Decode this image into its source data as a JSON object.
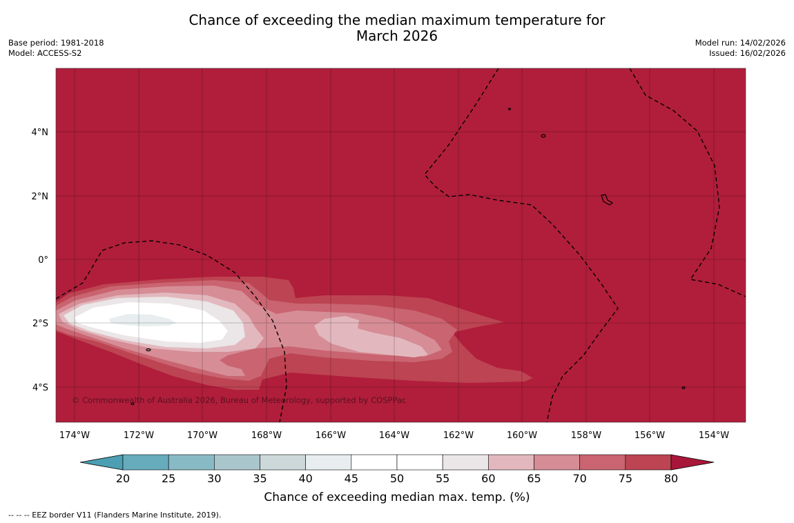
{
  "title": {
    "line1": "Chance of exceeding the median maximum temperature for",
    "line2": "March 2026"
  },
  "meta_left": {
    "base_period": "Base period: 1981-2018",
    "model": "Model: ACCESS-S2"
  },
  "meta_right": {
    "model_run": "Model run: 14/02/2026",
    "issued": "Issued: 16/02/2026"
  },
  "map": {
    "lat_labels": [
      "4°N",
      "2°N",
      "0°",
      "2°S",
      "4°S"
    ],
    "lon_labels": [
      "174°W",
      "172°W",
      "170°W",
      "168°W",
      "166°W",
      "164°W",
      "162°W",
      "160°W",
      "158°W",
      "156°W",
      "154°W"
    ],
    "copyright": "© Commonwealth of Australia 2026, Bureau of Meteorology, supported by COSPPac",
    "background_color": "#b01e3b"
  },
  "colorbar": {
    "ticks": [
      "20",
      "25",
      "30",
      "35",
      "40",
      "45",
      "50",
      "55",
      "60",
      "65",
      "70",
      "75",
      "80"
    ],
    "colors": [
      "#66acbc",
      "#88bac6",
      "#a9c6cc",
      "#cdd8da",
      "#e8eeef",
      "#ffffff",
      "#ffffff",
      "#ebe6e7",
      "#e2b8be",
      "#d68d96",
      "#c96470",
      "#bd4452"
    ],
    "under_color": "#4c9fb2",
    "over_color": "#a8163a",
    "label": "Chance of exceeding median max. temp. (%)"
  },
  "legend_note": "-- -- -- EEZ border V11 (Flanders Marine Institute, 2019)."
}
